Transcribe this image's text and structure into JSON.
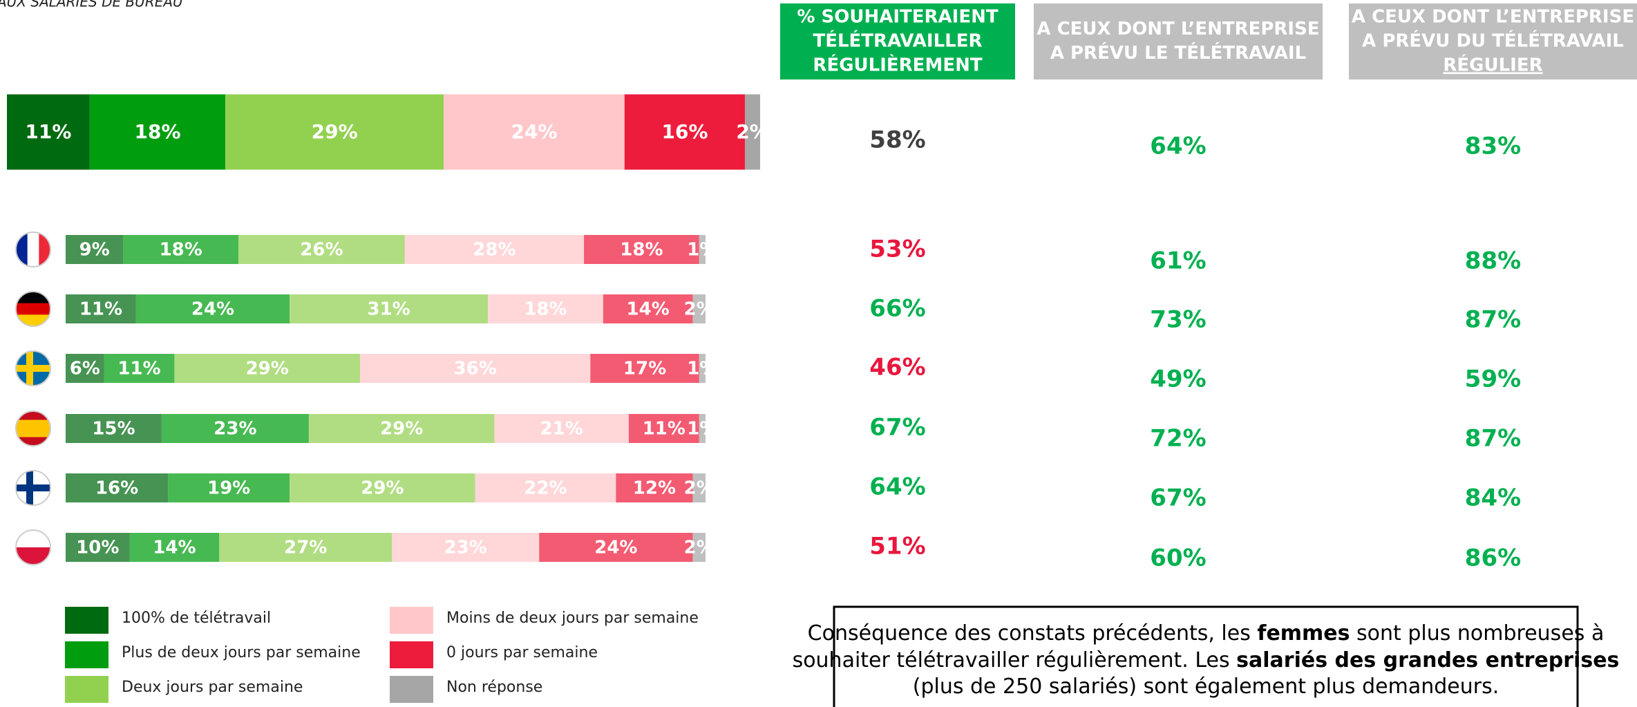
{
  "chart_data": {
    "type": "stacked-bar",
    "subtitle": "AUX SALARIÉS DE BUREAU",
    "categories": [
      null,
      null,
      null,
      null,
      null,
      null,
      null
    ],
    "series": [
      {
        "name": "100% de télétravail",
        "color": "#006a10",
        "values": [
          11,
          9,
          11,
          6,
          15,
          16,
          10
        ],
        "value_labels": [
          "11%",
          "9%",
          "11%",
          "6%",
          "15%",
          "16%",
          "10%"
        ]
      },
      {
        "name": "Plus de deux jours par semaine",
        "color": "#009e0f",
        "values": [
          18,
          18,
          24,
          11,
          23,
          19,
          14
        ],
        "value_labels": [
          "18%",
          "18%",
          "24%",
          "11%",
          "23%",
          "19%",
          "14%"
        ]
      },
      {
        "name": "Deux jours par semaine",
        "color": "#92d050",
        "values": [
          29,
          26,
          31,
          29,
          29,
          29,
          27
        ],
        "value_labels": [
          "29%",
          "26%",
          "31%",
          "29%",
          "29%",
          "29%",
          "27%"
        ]
      },
      {
        "name": "Moins de deux jours par semaine",
        "color": "#ffc7ca",
        "values": [
          24,
          28,
          18,
          36,
          21,
          22,
          23
        ],
        "value_labels": [
          "24%",
          "28%",
          "18%",
          "36%",
          "21%",
          "22%",
          "23%"
        ]
      },
      {
        "name": "0 jours par semaine",
        "color": "#ee1c3c",
        "values": [
          16,
          18,
          14,
          17,
          11,
          12,
          24
        ],
        "value_labels": [
          "16%",
          "18%",
          "14%",
          "17%",
          "11%",
          "12%",
          "24%"
        ]
      },
      {
        "name": "Non réponse",
        "color": "#a6a6a6",
        "values": [
          2,
          1,
          2,
          1,
          1,
          2,
          2
        ],
        "value_labels": [
          "2%",
          "1%",
          "2%",
          "1%",
          "1%",
          "2%",
          "2%"
        ]
      }
    ],
    "xlim": [
      0,
      100
    ]
  },
  "table": {
    "columns": [
      {
        "header": [
          "% SOUHAITERAIENT",
          "TÉLÉTRAVAILLER",
          "RÉGULIÈREMENT"
        ],
        "header_color": "#00b050",
        "underline_last_line": false,
        "values": [
          "58%",
          "53%",
          "66%",
          "46%",
          "67%",
          "64%",
          "51%"
        ],
        "colors": [
          "#404040",
          "#e8173d",
          "#00b050",
          "#e8173d",
          "#00b050",
          "#00b050",
          "#e8173d"
        ]
      },
      {
        "header": [
          "A CEUX DONT L’ENTREPRISE",
          "A PRÉVU LE TÉLÉTRAVAIL"
        ],
        "header_color": "#bfbfbf",
        "underline_last_line": false,
        "values": [
          "64%",
          "61%",
          "73%",
          "49%",
          "72%",
          "67%",
          "60%"
        ],
        "colors": [
          "#00b050",
          "#00b050",
          "#00b050",
          "#00b050",
          "#00b050",
          "#00b050",
          "#00b050"
        ]
      },
      {
        "header": [
          "A CEUX DONT L’ENTREPRISE",
          "A PRÉVU DU TÉLÉTRAVAIL",
          "RÉGULIER"
        ],
        "header_color": "#bfbfbf",
        "underline_last_line": true,
        "values": [
          "83%",
          "88%",
          "87%",
          "59%",
          "87%",
          "84%",
          "86%"
        ],
        "colors": [
          "#00b050",
          "#00b050",
          "#00b050",
          "#00b050",
          "#00b050",
          "#00b050",
          "#00b050"
        ]
      }
    ]
  },
  "note": {
    "lines": [
      [
        {
          "text": "Conséquence des constats précédents, les ",
          "bold": false
        },
        {
          "text": "femmes",
          "bold": true
        },
        {
          "text": " sont plus nombreuses à",
          "bold": false
        }
      ],
      [
        {
          "text": "souhaiter télétravailler régulièrement. Les ",
          "bold": false
        },
        {
          "text": "salariés des grandes entreprises",
          "bold": true
        }
      ],
      [
        {
          "text": "(plus de 250 salariés) sont également plus demandeurs.",
          "bold": false
        }
      ]
    ]
  }
}
